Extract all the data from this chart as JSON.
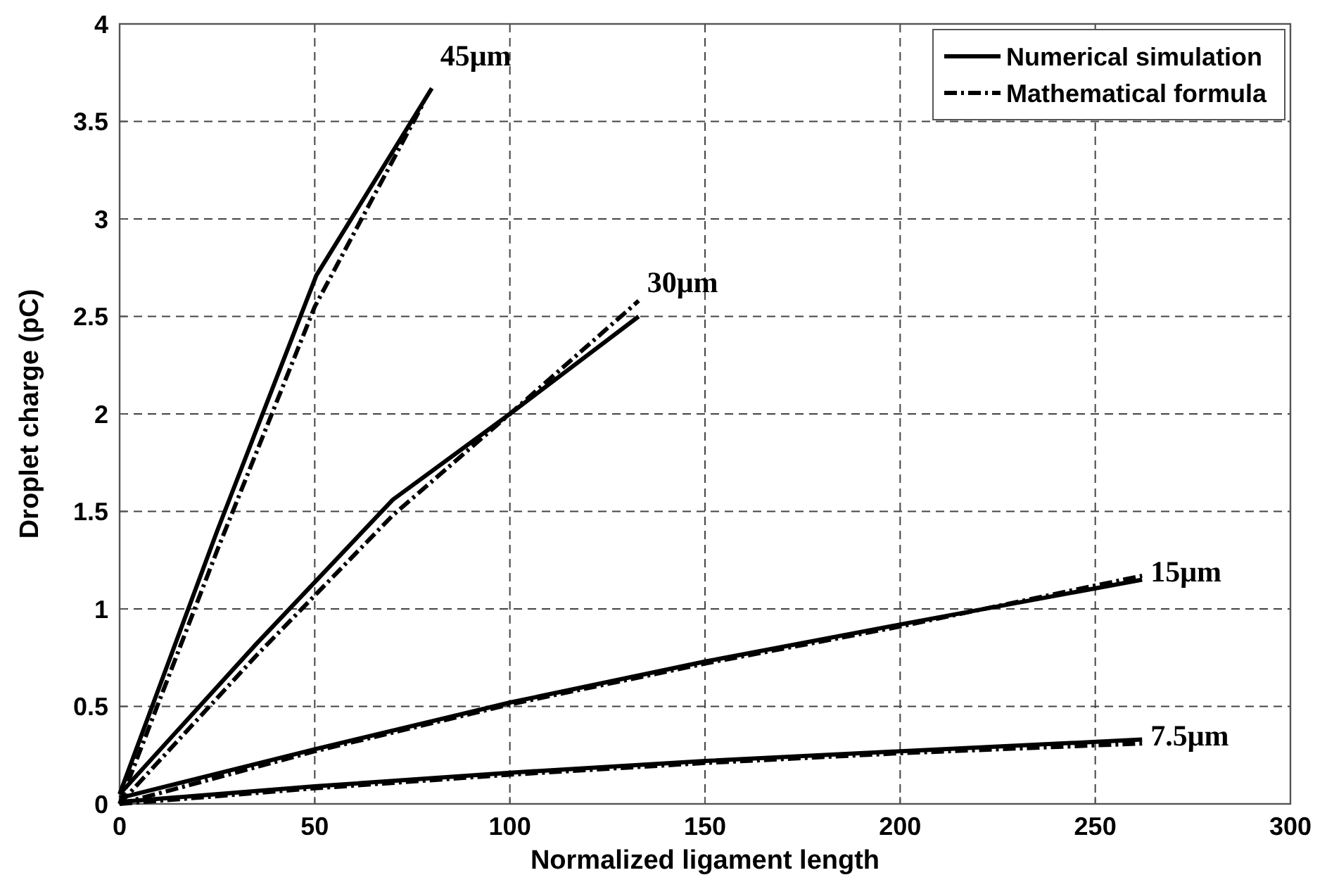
{
  "chart_data": {
    "type": "line",
    "xlabel": "Normalized ligament length",
    "ylabel": "Droplet charge (pC)",
    "xlim": [
      0,
      300
    ],
    "ylim": [
      0,
      4
    ],
    "xticks": [
      0,
      50,
      100,
      150,
      200,
      250,
      300
    ],
    "yticks": [
      0,
      0.5,
      1,
      1.5,
      2,
      2.5,
      3,
      3.5,
      4
    ],
    "grid": true,
    "legend": "top right",
    "marker": "none",
    "series": [
      {
        "name": "Numerical simulation",
        "color": "#000000",
        "line_style": "solid",
        "x": [
          0,
          25,
          50.4,
          80
        ],
        "values": [
          0.05,
          1.4,
          2.71,
          3.67
        ]
      },
      {
        "name": "Mathematical formula",
        "color": "#000000",
        "line_style": "dashed",
        "x": [
          0,
          25,
          50,
          78
        ],
        "values": [
          0,
          1.3,
          2.55,
          3.6
        ]
      },
      {
        "color": "#000000",
        "line_style": "solid",
        "x": [
          0,
          35,
          70,
          100,
          133
        ],
        "values": [
          0.05,
          0.82,
          1.56,
          2.0,
          2.5
        ]
      },
      {
        "color": "#000000",
        "line_style": "dashed",
        "x": [
          0,
          35,
          70,
          100,
          133
        ],
        "values": [
          0,
          0.76,
          1.48,
          2.0,
          2.58
        ]
      },
      {
        "color": "#000000",
        "line_style": "solid",
        "x": [
          0,
          50,
          100,
          150,
          200,
          262
        ],
        "values": [
          0.03,
          0.28,
          0.52,
          0.73,
          0.92,
          1.15
        ]
      },
      {
        "color": "#000000",
        "line_style": "dashed",
        "x": [
          0,
          50,
          100,
          150,
          200,
          262
        ],
        "values": [
          0,
          0.27,
          0.51,
          0.72,
          0.91,
          1.17
        ]
      },
      {
        "color": "#000000",
        "line_style": "solid",
        "x": [
          0,
          50,
          100,
          150,
          200,
          262
        ],
        "values": [
          0.01,
          0.09,
          0.16,
          0.22,
          0.27,
          0.33
        ]
      },
      {
        "color": "#000000",
        "line_style": "dashed",
        "x": [
          0,
          50,
          100,
          150,
          200,
          262
        ],
        "values": [
          0,
          0.08,
          0.15,
          0.21,
          0.26,
          0.31
        ]
      }
    ],
    "annotations": [
      {
        "text": "45μm",
        "x": 80,
        "y": 3.67
      },
      {
        "text": "30μm",
        "x": 133,
        "y": 2.58
      },
      {
        "text": "15μm",
        "x": 262,
        "y": 1.17
      },
      {
        "text": "7.5μm",
        "x": 262,
        "y": 0.33
      }
    ]
  }
}
